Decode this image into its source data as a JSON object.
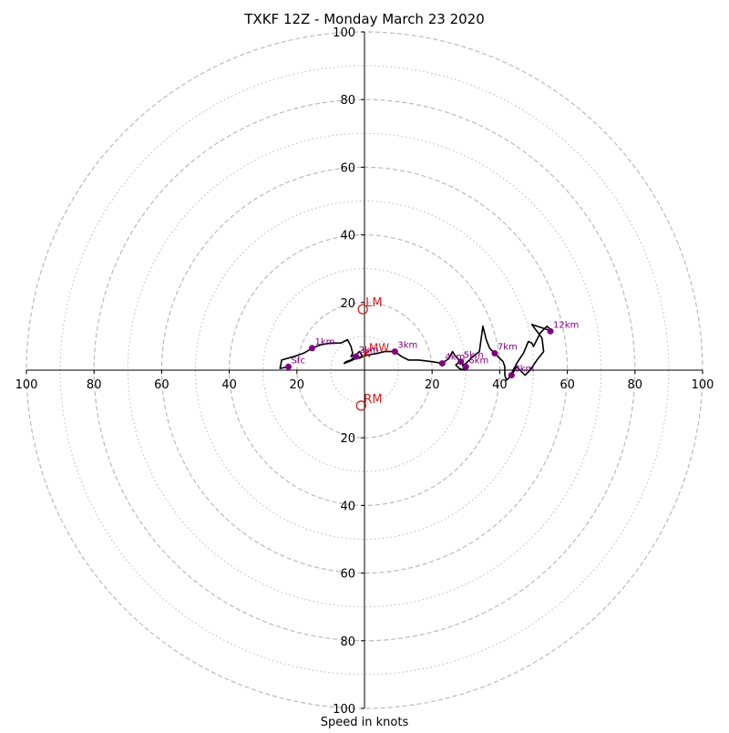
{
  "chart_data": {
    "type": "hodograph",
    "title": "TXKF 12Z - Monday March 23 2020",
    "xlabel": "Speed in knots",
    "ylabel": "",
    "xlim": [
      -100,
      100
    ],
    "ylim": [
      -100,
      100
    ],
    "rings_major": [
      20,
      40,
      60,
      80,
      100
    ],
    "rings_minor": [
      10,
      30,
      50,
      70,
      90
    ],
    "x_tick_labels": [
      "100",
      "80",
      "60",
      "40",
      "20",
      "20",
      "40",
      "60",
      "80",
      "100"
    ],
    "x_tick_values": [
      -100,
      -80,
      -60,
      -40,
      -20,
      20,
      40,
      60,
      80,
      100
    ],
    "y_tick_labels": [
      "100",
      "80",
      "60",
      "40",
      "20",
      "20",
      "40",
      "60",
      "80",
      "100"
    ],
    "y_tick_values": [
      100,
      80,
      60,
      40,
      20,
      -20,
      -40,
      -60,
      -80,
      -100
    ],
    "grid": true,
    "hodograph_trace": [
      [
        -22.5,
        1
      ],
      [
        -25,
        0.5
      ],
      [
        -24.5,
        3
      ],
      [
        -21,
        4
      ],
      [
        -18,
        5
      ],
      [
        -15.5,
        6.5
      ],
      [
        -13,
        7.5
      ],
      [
        -10,
        8
      ],
      [
        -7,
        8
      ],
      [
        -5,
        9
      ],
      [
        -4,
        7
      ],
      [
        -3.5,
        5
      ],
      [
        -4,
        4
      ],
      [
        -3,
        4.5
      ],
      [
        -1.5,
        3.5
      ],
      [
        -0.5,
        4
      ],
      [
        -1.5,
        5.5
      ],
      [
        -3,
        4
      ],
      [
        -4,
        3
      ],
      [
        -5.5,
        2.5
      ],
      [
        -6,
        2
      ],
      [
        -4,
        2.8
      ],
      [
        -2.5,
        3.5
      ],
      [
        -1,
        4
      ],
      [
        1,
        4.5
      ],
      [
        4,
        5
      ],
      [
        6,
        5.5
      ],
      [
        9,
        5.5
      ],
      [
        11,
        4
      ],
      [
        13,
        3
      ],
      [
        16,
        3
      ],
      [
        20,
        2.5
      ],
      [
        23,
        2
      ],
      [
        25,
        3.5
      ],
      [
        26,
        5.5
      ],
      [
        27,
        4
      ],
      [
        28,
        3
      ],
      [
        28.5,
        2.5
      ],
      [
        27.5,
        2
      ],
      [
        27,
        1.5
      ],
      [
        28,
        0.5
      ],
      [
        29.5,
        0
      ],
      [
        29,
        1.5
      ],
      [
        30,
        2
      ],
      [
        31,
        3
      ],
      [
        32,
        4
      ],
      [
        34,
        5.5
      ],
      [
        35,
        13
      ],
      [
        36,
        9
      ],
      [
        37,
        6.5
      ],
      [
        38.5,
        5
      ],
      [
        40,
        3.5
      ],
      [
        41,
        2.5
      ],
      [
        41.5,
        1
      ],
      [
        41.5,
        -1.5
      ],
      [
        42,
        -3
      ],
      [
        43,
        -2
      ],
      [
        44,
        0
      ],
      [
        45,
        2
      ],
      [
        47,
        5
      ],
      [
        48.5,
        8.5
      ],
      [
        49.5,
        8
      ],
      [
        50,
        7
      ],
      [
        52,
        11
      ],
      [
        54,
        13
      ],
      [
        55.5,
        11.5
      ],
      [
        51,
        13
      ],
      [
        49.5,
        13.5
      ],
      [
        52.5,
        9.5
      ],
      [
        53,
        5.5
      ],
      [
        51,
        3
      ],
      [
        49,
        0
      ],
      [
        47.5,
        -1.5
      ],
      [
        45,
        1
      ],
      [
        43.5,
        -1.5
      ]
    ],
    "height_markers": [
      {
        "label": "Sfc",
        "x": -22.5,
        "y": 1
      },
      {
        "label": "1km",
        "x": -15.5,
        "y": 6.5
      },
      {
        "label": "2km",
        "x": -2.5,
        "y": 4
      },
      {
        "label": "3km",
        "x": 9,
        "y": 5.5
      },
      {
        "label": "4km",
        "x": 23,
        "y": 2
      },
      {
        "label": "5km",
        "x": 28.5,
        "y": 2.5
      },
      {
        "label": "6km",
        "x": 30,
        "y": 1
      },
      {
        "label": "7km",
        "x": 38.5,
        "y": 5
      },
      {
        "label": "8km",
        "x": 43.5,
        "y": -1.5
      },
      {
        "label": "12km",
        "x": 55,
        "y": 11.5
      }
    ],
    "storm_motion": [
      {
        "label": "LM",
        "x": -0.5,
        "y": 18
      },
      {
        "label": "MW",
        "x": 0.5,
        "y": 5
      },
      {
        "label": "RM",
        "x": -1,
        "y": -10.5
      }
    ],
    "colors": {
      "trace": "#000000",
      "markers": "#800080",
      "storm_motion": "#cc2222",
      "grid": "#bbbbbb",
      "axes": "#000000"
    }
  }
}
